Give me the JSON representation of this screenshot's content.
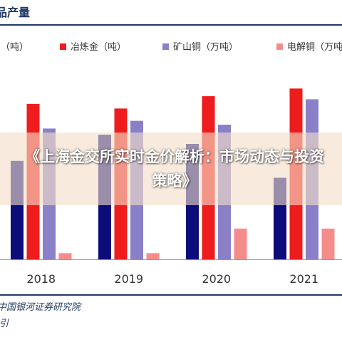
{
  "header": {
    "title": "品产量"
  },
  "footer": {
    "source": "中国银河证券研究院",
    "note": "指引"
  },
  "overlay": {
    "headline": "《上海金交所实时金价解析：市场动态与投资策略》"
  },
  "colors": {
    "title": "#1f3864",
    "series": [
      "#0c0c7a",
      "#ee1c1c",
      "#8a80c8",
      "#f58c8c"
    ],
    "overlay": "#f4dec8"
  },
  "chart_data": {
    "type": "bar",
    "categories": [
      "2018",
      "2019",
      "2020",
      "2021"
    ],
    "series": [
      {
        "name": "（吨）",
        "values": [
          128,
          162,
          150,
          106
        ]
      },
      {
        "name": "冶炼金（吨）",
        "values": [
          202,
          196,
          212,
          222
        ]
      },
      {
        "name": "矿山铜（万吨）",
        "values": [
          170,
          180,
          175,
          208
        ]
      },
      {
        "name": "电解铜（万吨）",
        "values": [
          8,
          8,
          40,
          40
        ]
      }
    ],
    "ylim": [
      0,
      250
    ],
    "grid": false,
    "legend_position": "top"
  }
}
